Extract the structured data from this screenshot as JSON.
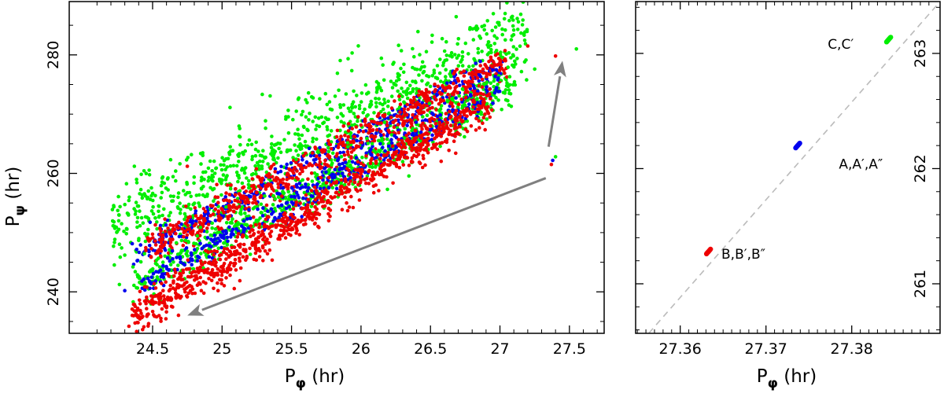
{
  "chart_data": [
    {
      "type": "scatter",
      "panel": "left",
      "xlabel_base": "P",
      "xlabel_sub": "φ",
      "xlabel_unit": "(hr)",
      "ylabel_base": "P",
      "ylabel_sub": "ψ",
      "ylabel_unit": "(hr)",
      "xlim": [
        23.9,
        27.75
      ],
      "ylim": [
        233,
        289
      ],
      "xticks": [
        24.5,
        25,
        25.5,
        26,
        26.5,
        27,
        27.5
      ],
      "xtick_labels": [
        "24.5",
        "25",
        "25.5",
        "26",
        "26.5",
        "27",
        "27.5"
      ],
      "yticks": [
        240,
        260,
        280
      ],
      "ytick_labels": [
        "240",
        "260",
        "280"
      ],
      "grid": false,
      "series": [
        {
          "color": "#00ee00",
          "bands": [
            {
              "x0": 24.2,
              "x1": 27.2,
              "y0": 250.5,
              "y1": 283.5,
              "spread": 3.6,
              "n": 900
            },
            {
              "x0": 24.35,
              "x1": 27.1,
              "y0": 241.0,
              "y1": 275.0,
              "spread": 1.8,
              "n": 650
            }
          ],
          "extra_points": [
            [
              24.3,
              246.2
            ],
            [
              27.05,
              288.8
            ],
            [
              27.4,
              262.8
            ],
            [
              27.55,
              281.0
            ],
            [
              27.25,
              277.6
            ]
          ]
        },
        {
          "color": "#0000ee",
          "bands": [
            {
              "x0": 24.35,
              "x1": 27.05,
              "y0": 246.0,
              "y1": 279.0,
              "spread": 1.2,
              "n": 380
            },
            {
              "x0": 24.4,
              "x1": 27.0,
              "y0": 241.0,
              "y1": 274.5,
              "spread": 1.3,
              "n": 380
            }
          ],
          "extra_points": [
            [
              24.3,
              240.2
            ],
            [
              27.38,
              262.2
            ]
          ]
        },
        {
          "color": "#ee0000",
          "bands": [
            {
              "x0": 24.45,
              "x1": 27.05,
              "y0": 247.0,
              "y1": 279.0,
              "spread": 1.5,
              "n": 650
            },
            {
              "x0": 24.35,
              "x1": 26.95,
              "y0": 235.5,
              "y1": 272.5,
              "spread": 1.7,
              "n": 900
            }
          ],
          "extra_points": [
            [
              24.75,
              261.2
            ],
            [
              27.4,
              279.8
            ],
            [
              27.2,
              281.5
            ],
            [
              24.33,
              234.2
            ],
            [
              27.37,
              261.5
            ]
          ]
        }
      ],
      "arrows": [
        {
          "from": [
            27.33,
            259.2
          ],
          "to": [
            24.75,
            236.0
          ]
        },
        {
          "from": [
            27.35,
            264.5
          ],
          "to": [
            27.45,
            279.0
          ]
        }
      ]
    },
    {
      "type": "scatter",
      "panel": "right",
      "xlabel_base": "P",
      "xlabel_sub": "φ",
      "xlabel_unit": "(hr)",
      "xlim": [
        27.3548,
        27.3903
      ],
      "ylim": [
        260.57,
        263.45
      ],
      "xticks": [
        27.36,
        27.37,
        27.38
      ],
      "xtick_labels": [
        "27.36",
        "27.37",
        "27.38"
      ],
      "yticks": [
        261,
        262,
        263
      ],
      "ytick_labels": [
        "261",
        "262",
        "263"
      ],
      "grid": false,
      "reference_line": {
        "from": [
          27.3555,
          260.5
        ],
        "to": [
          27.3903,
          263.45
        ],
        "color": "#bbbbbb",
        "style": "dashed"
      },
      "clusters": [
        {
          "label": "C,C'",
          "label_text": "C,C′",
          "color": "#00ee00",
          "x": 27.3843,
          "y": 263.12,
          "label_at": [
            27.3772,
            263.04
          ]
        },
        {
          "label": "A,A',A\"",
          "label_text": "A,A′,A″",
          "color": "#0000ee",
          "x": 27.3737,
          "y": 262.2,
          "label_at": [
            27.3785,
            262.0
          ]
        },
        {
          "label": "B,B',B\"",
          "label_text": "B,B′,B″",
          "color": "#ee0000",
          "x": 27.3633,
          "y": 261.28,
          "label_at": [
            27.3648,
            261.22
          ]
        }
      ]
    }
  ]
}
